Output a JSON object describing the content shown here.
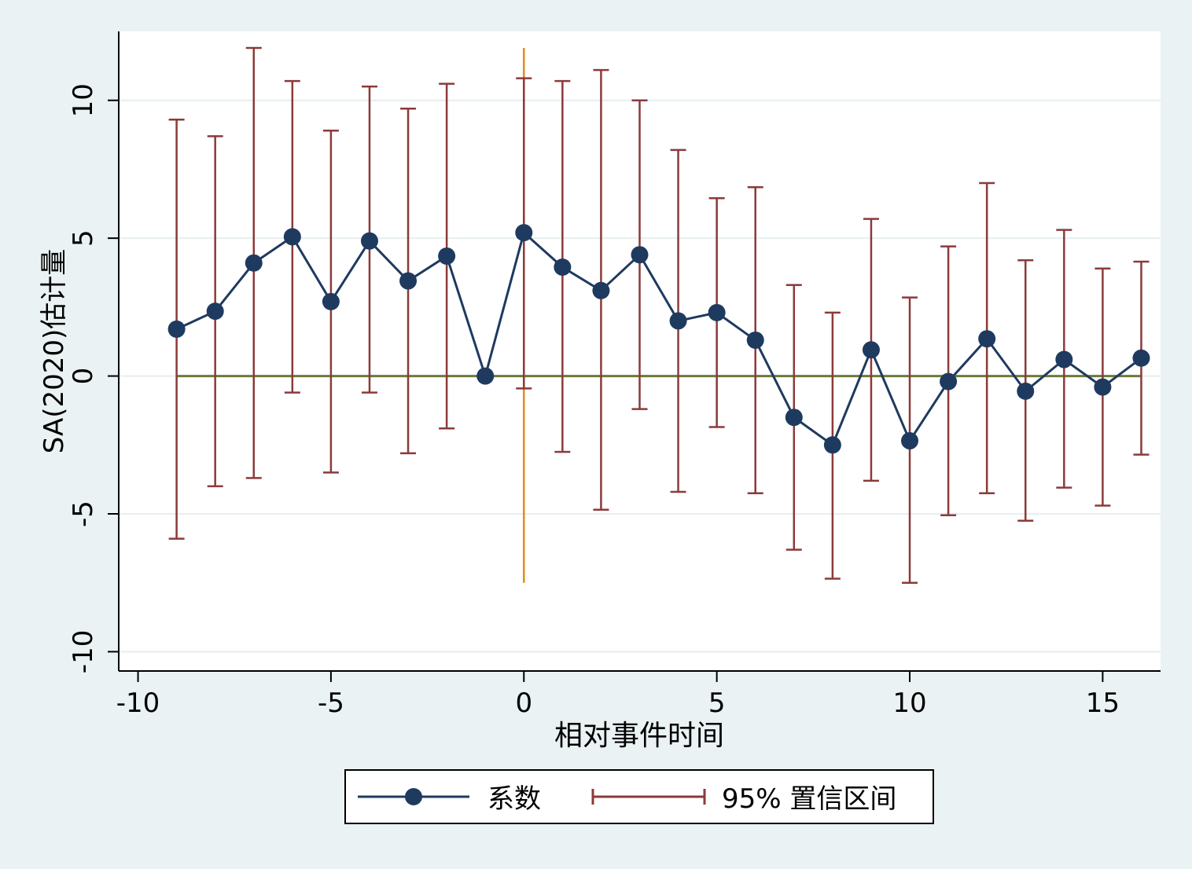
{
  "chart_data": {
    "type": "scatter",
    "xlabel": "相对事件时间",
    "ylabel": "SA(2020)估计量",
    "xlim": [
      -10.5,
      16.5
    ],
    "ylim": [
      -10.7,
      12.5
    ],
    "x_ticks": [
      -10,
      -5,
      0,
      5,
      10,
      15
    ],
    "x_tick_labels": [
      "-10",
      "-5",
      "0",
      "5",
      "10",
      "15"
    ],
    "y_ticks": [
      -10,
      -5,
      0,
      5,
      10
    ],
    "y_tick_labels": [
      "-10",
      "-5",
      "0",
      "5",
      "10"
    ],
    "grid": "horizontal",
    "reference_lines": {
      "horizontal_y": 0,
      "vertical_x": 0,
      "vertical_range": [
        -7.5,
        11.9
      ]
    },
    "legend": {
      "placement": "bottom",
      "entries": [
        {
          "label": "系数",
          "kind": "connected-marker"
        },
        {
          "label": "95% 置信区间",
          "kind": "capped-range"
        }
      ]
    },
    "colors": {
      "background": "#eaf2f3",
      "plot_area": "#ffffff",
      "coefficient": "#1f3a5f",
      "ci": "#8b3a3a",
      "zero_line": "#6b7a3a",
      "vertical_line": "#e08c1e",
      "grid": "#e6eef0"
    },
    "series": [
      {
        "name": "系数",
        "x": [
          -9,
          -8,
          -7,
          -6,
          -5,
          -4,
          -3,
          -2,
          -1,
          0,
          1,
          2,
          3,
          4,
          5,
          6,
          7,
          8,
          9,
          10,
          11,
          12,
          13,
          14,
          15,
          16
        ],
        "y": [
          1.7,
          2.35,
          4.1,
          5.05,
          2.7,
          4.9,
          3.45,
          4.35,
          0.0,
          5.2,
          3.95,
          3.1,
          4.4,
          2.0,
          2.3,
          1.3,
          -1.5,
          -2.5,
          0.95,
          -2.35,
          -0.2,
          1.35,
          -0.55,
          0.6,
          -0.4,
          0.65
        ]
      },
      {
        "name": "95% 置信区间",
        "x": [
          -9,
          -8,
          -7,
          -6,
          -5,
          -4,
          -3,
          -2,
          0,
          1,
          2,
          3,
          4,
          5,
          6,
          7,
          8,
          9,
          10,
          11,
          12,
          13,
          14,
          15,
          16
        ],
        "lower": [
          -5.9,
          -4.0,
          -3.7,
          -0.6,
          -3.5,
          -0.6,
          -2.8,
          -1.9,
          -0.45,
          -2.75,
          -4.85,
          -1.2,
          -4.2,
          -1.85,
          -4.25,
          -6.3,
          -7.35,
          -3.8,
          -7.5,
          -5.05,
          -4.25,
          -5.25,
          -4.05,
          -4.7,
          -2.85
        ],
        "upper": [
          9.3,
          8.7,
          11.9,
          10.7,
          8.9,
          10.5,
          9.7,
          10.6,
          10.8,
          10.7,
          11.1,
          10.0,
          8.2,
          6.45,
          6.85,
          3.3,
          2.3,
          5.7,
          2.85,
          4.7,
          7.0,
          4.2,
          5.3,
          3.9,
          4.15
        ]
      }
    ]
  }
}
